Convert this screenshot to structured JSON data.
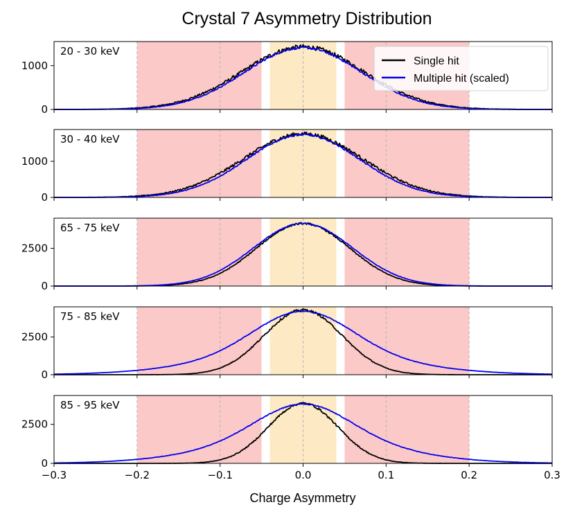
{
  "chart_data": {
    "type": "line",
    "title": "Crystal 7 Asymmetry Distribution",
    "xlabel": "Charge Asymmetry",
    "xlim": [
      -0.3,
      0.3
    ],
    "xticks": [
      -0.3,
      -0.2,
      -0.1,
      0.0,
      0.1,
      0.2,
      0.3
    ],
    "xtick_labels": [
      "−0.3",
      "−0.2",
      "−0.1",
      "0.0",
      "0.1",
      "0.2",
      "0.3"
    ],
    "grid_vlines": [
      -0.2,
      -0.1,
      0.0,
      0.1,
      0.2
    ],
    "shaded_regions": [
      {
        "name": "red-region-left",
        "from": -0.2,
        "to": -0.05,
        "color": "#fcc9c9"
      },
      {
        "name": "orange-region",
        "from": -0.04,
        "to": 0.04,
        "color": "#fde9c4"
      },
      {
        "name": "red-region-right",
        "from": 0.05,
        "to": 0.2,
        "color": "#fcc9c9"
      }
    ],
    "legend": {
      "position": "top-right",
      "entries": [
        {
          "label": "Single hit",
          "color": "#000000"
        },
        {
          "label": "Multiple hit (scaled)",
          "color": "#0000ee"
        }
      ]
    },
    "panels": [
      {
        "label": "20 - 30 keV",
        "ylim": [
          0,
          1550
        ],
        "yticks": [
          0,
          1000
        ],
        "ytick_labels": [
          "0",
          "1000"
        ],
        "series": [
          {
            "name": "Single hit",
            "peak": 1430,
            "sigma": 0.073,
            "noise": 50,
            "shoulder": 0.0
          },
          {
            "name": "Multiple hit (scaled)",
            "peak": 1410,
            "sigma": 0.07,
            "noise": 25,
            "shoulder": 0.0
          }
        ]
      },
      {
        "label": "30 - 40 keV",
        "ylim": [
          0,
          1880
        ],
        "yticks": [
          0,
          1000
        ],
        "ytick_labels": [
          "0",
          "1000"
        ],
        "series": [
          {
            "name": "Single hit",
            "peak": 1760,
            "sigma": 0.072,
            "noise": 55,
            "shoulder": 0.0
          },
          {
            "name": "Multiple hit (scaled)",
            "peak": 1740,
            "sigma": 0.068,
            "noise": 25,
            "shoulder": 0.0
          }
        ]
      },
      {
        "label": "65 - 75 keV",
        "ylim": [
          0,
          4500
        ],
        "yticks": [
          0,
          2500
        ],
        "ytick_labels": [
          "0",
          "2500"
        ],
        "series": [
          {
            "name": "Single hit",
            "peak": 4150,
            "sigma": 0.056,
            "noise": 60,
            "shoulder": 0.0
          },
          {
            "name": "Multiple hit (scaled)",
            "peak": 4150,
            "sigma": 0.06,
            "noise": 30,
            "shoulder": 0.0
          }
        ]
      },
      {
        "label": "75 - 85 keV",
        "ylim": [
          0,
          4500
        ],
        "yticks": [
          0,
          2500
        ],
        "ytick_labels": [
          "0",
          "2500"
        ],
        "series": [
          {
            "name": "Single hit",
            "peak": 4300,
            "sigma": 0.047,
            "noise": 70,
            "shoulder": 0.0
          },
          {
            "name": "Multiple hit (scaled)",
            "peak": 4200,
            "sigma": 0.058,
            "noise": 30,
            "shoulder": 0.35
          }
        ]
      },
      {
        "label": "85 - 95 keV",
        "ylim": [
          0,
          4350
        ],
        "yticks": [
          0,
          2500
        ],
        "ytick_labels": [
          "0",
          "2500"
        ],
        "series": [
          {
            "name": "Single hit",
            "peak": 3850,
            "sigma": 0.042,
            "noise": 70,
            "shoulder": 0.0
          },
          {
            "name": "Multiple hit (scaled)",
            "peak": 3800,
            "sigma": 0.055,
            "noise": 30,
            "shoulder": 0.42
          }
        ]
      }
    ]
  }
}
